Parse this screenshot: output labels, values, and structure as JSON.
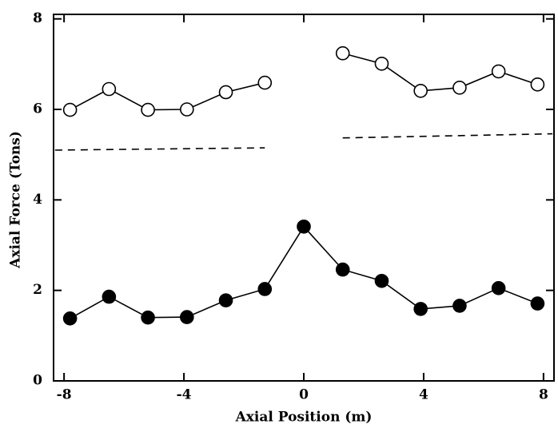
{
  "chart_data": {
    "type": "line",
    "xlabel": "Axial Position (m)",
    "ylabel": "Axial Force (Tons)",
    "xlim": [
      -8.35,
      8.35
    ],
    "ylim": [
      0,
      8.1
    ],
    "xticks": [
      -8,
      -4,
      0,
      4,
      8
    ],
    "yticks": [
      0,
      2,
      4,
      6,
      8
    ],
    "grid": false,
    "series": [
      {
        "color": "#000000",
        "marker": "open",
        "linestyle": "solid",
        "x": [
          -7.8,
          -6.5,
          -5.2,
          -3.9,
          -2.6,
          -1.3,
          0,
          1.3,
          2.6,
          3.9,
          5.2,
          6.5,
          7.8
        ],
        "values": [
          5.99,
          6.45,
          5.99,
          6.0,
          6.38,
          6.59,
          null,
          7.24,
          7.01,
          6.41,
          6.48,
          6.84,
          6.55
        ]
      },
      {
        "color": "#000000",
        "marker": "filled",
        "linestyle": "solid",
        "x": [
          -7.8,
          -6.5,
          -5.2,
          -3.9,
          -2.6,
          -1.3,
          0,
          1.3,
          2.6,
          3.9,
          5.2,
          6.5,
          7.8
        ],
        "values": [
          1.38,
          1.86,
          1.4,
          1.41,
          1.78,
          2.03,
          3.41,
          2.46,
          2.21,
          1.59,
          1.66,
          2.05,
          1.71
        ]
      },
      {
        "color": "#000000",
        "marker": "none",
        "linestyle": "dashed",
        "x": [
          -8.3,
          -1.3,
          0,
          1.3,
          8.3
        ],
        "values": [
          5.1,
          5.15,
          null,
          5.37,
          5.46
        ]
      }
    ]
  }
}
